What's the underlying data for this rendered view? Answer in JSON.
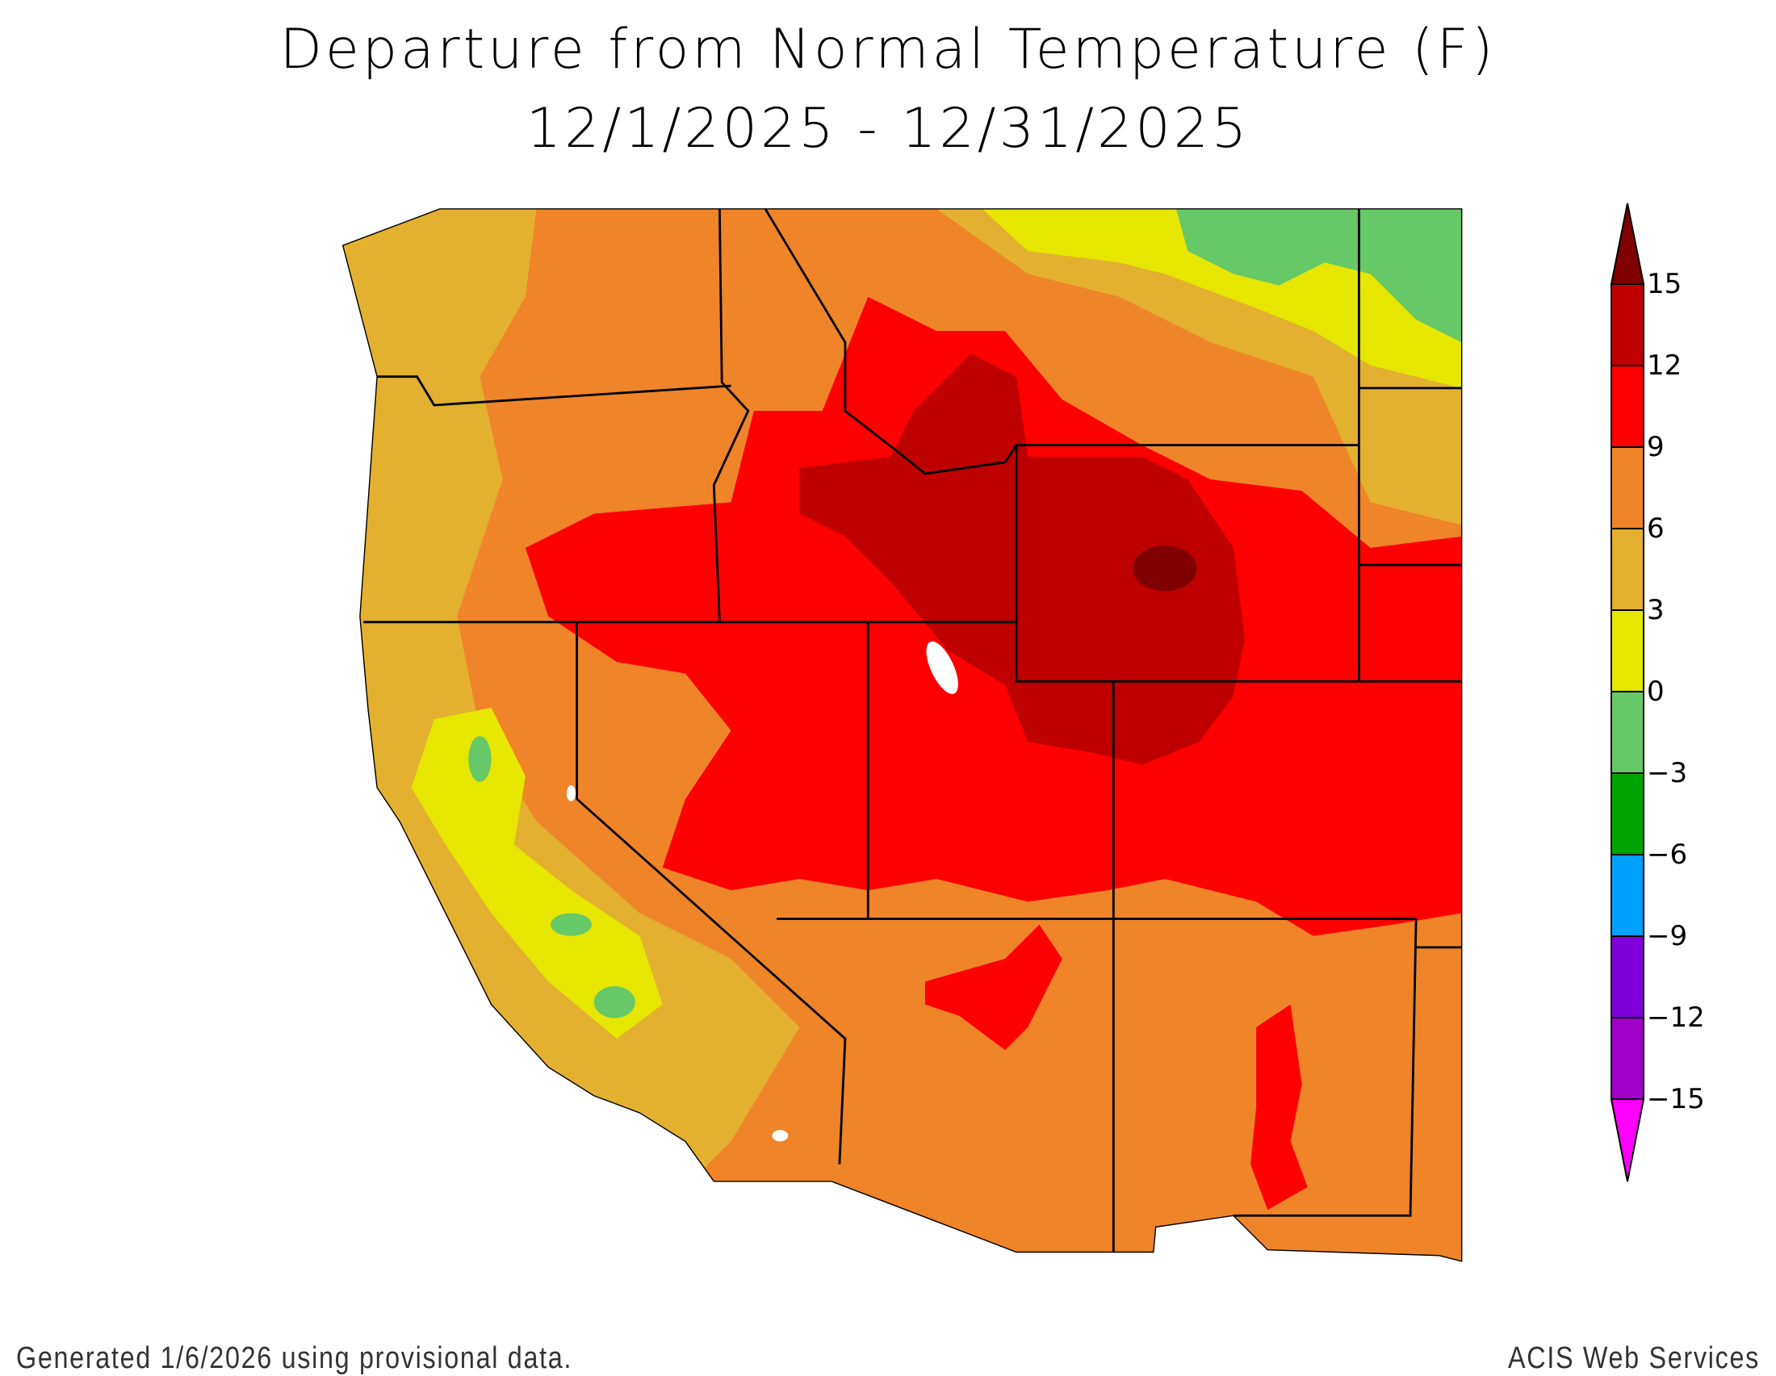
{
  "title": "Departure from Normal Temperature (F)",
  "date_range": "12/1/2025 - 12/31/2025",
  "footer_left": "Generated 1/6/2026 using provisional data.",
  "footer_right": "ACIS Web Services",
  "legend": {
    "labels": [
      "15",
      "12",
      "9",
      "6",
      "3",
      "0",
      "−3",
      "−6",
      "−9",
      "−12",
      "−15"
    ],
    "colors": {
      "above_15": "#800000",
      "12_to_15": "#bf0000",
      "9_to_12": "#ff0000",
      "6_to_9": "#ef8429",
      "3_to_6": "#e3b030",
      "0_to_3": "#e6e600",
      "-3_to_0": "#66c866",
      "-6_to_-3": "#00a400",
      "-9_to_-6": "#00a0ff",
      "-12_to_-9": "#8000dc",
      "-15_to_-12": "#a000c8",
      "below_-15": "#ff00ff"
    }
  }
}
